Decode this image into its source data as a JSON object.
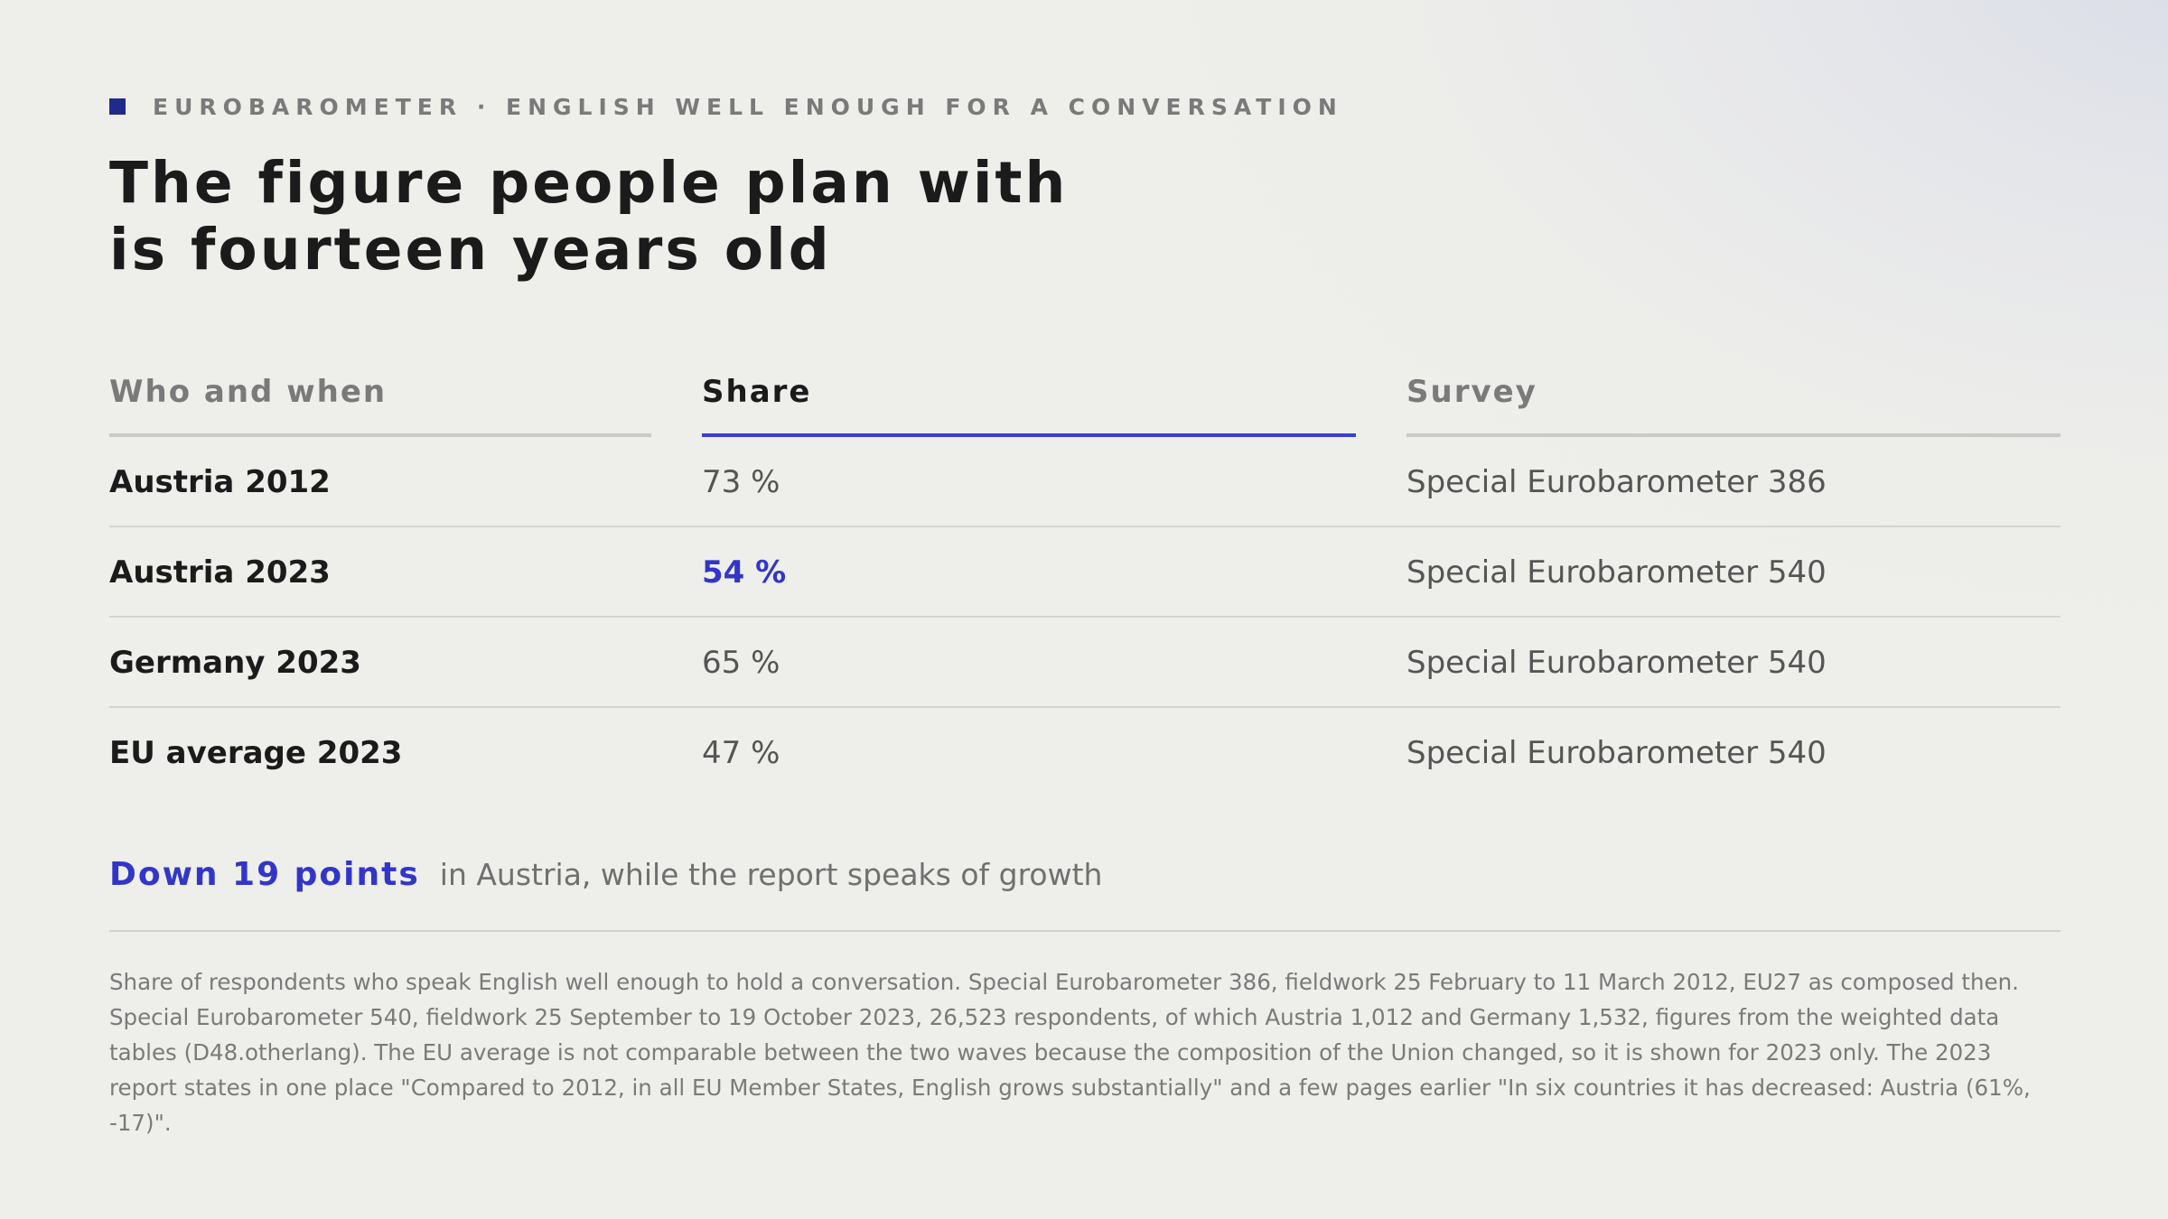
{
  "kicker": "EUROBAROMETER · ENGLISH WELL ENOUGH FOR A CONVERSATION",
  "title": {
    "line1": "The figure people plan with",
    "line2": "is fourteen years old"
  },
  "table": {
    "headers": [
      "Who and when",
      "Share",
      "Survey"
    ],
    "rows": [
      {
        "who": "Austria 2012",
        "share": "73 %",
        "survey": "Special Eurobarometer 386"
      },
      {
        "who": "Austria 2023",
        "share": "54 %",
        "survey": "Special Eurobarometer 540"
      },
      {
        "who": "Germany 2023",
        "share": "65 %",
        "survey": "Special Eurobarometer 540"
      },
      {
        "who": "EU average 2023",
        "share": "47 %",
        "survey": "Special Eurobarometer 540"
      }
    ]
  },
  "callout": {
    "highlight": "Down 19 points",
    "text": "in Austria, while the report speaks of growth"
  },
  "note": "Share of respondents who speak English well enough to hold a conversation. Special Eurobarometer 386, fieldwork 25 February to 11 March 2012, EU27 as composed then. Special Eurobarometer 540, fieldwork 25 September to 19 October 2023, 26,523 respondents, of which Austria 1,012 and Germany 1,532, figures from the weighted data tables (D48.otherlang). The EU average is not comparable between the two waves because the composition of the Union changed, so it is shown for 2023 only. The 2023 report states in one place \"Compared to 2012, in all EU Member States, English grows substantially\" and a few pages earlier \"In six countries it has decreased: Austria (61%, -17)\".",
  "colors": {
    "accent": "#3236c8",
    "kicker_square": "#1f2a8a"
  }
}
